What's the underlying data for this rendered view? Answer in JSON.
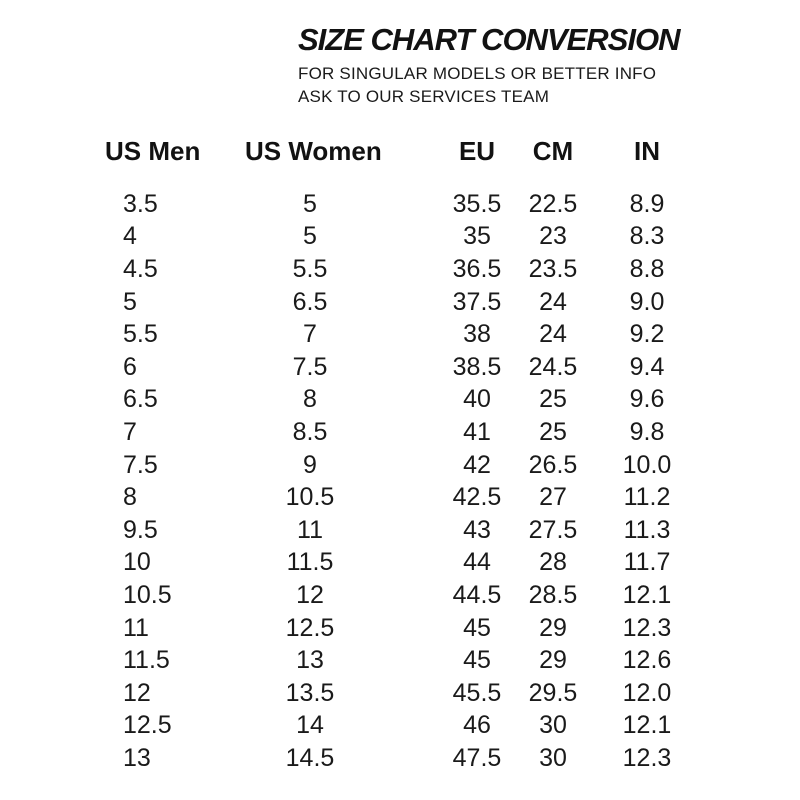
{
  "page": {
    "background_color": "#ffffff",
    "text_color": "#141414"
  },
  "header": {
    "title": "SIZE CHART CONVERSION",
    "subtitle_line1": "FOR SINGULAR MODELS OR BETTER INFO",
    "subtitle_line2": "ASK TO OUR SERVICES TEAM"
  },
  "chart_data": {
    "type": "table",
    "title": "SIZE CHART CONVERSION",
    "subtitle": "FOR SINGULAR MODELS OR BETTER INFO ASK TO OUR SERVICES TEAM",
    "columns": [
      "US Men",
      "US Women",
      "EU",
      "CM",
      "IN"
    ],
    "column_keys": [
      "us-men",
      "us-women",
      "eu",
      "cm",
      "in"
    ],
    "rows": [
      [
        "3.5",
        "5",
        "35.5",
        "22.5",
        "8.9"
      ],
      [
        "4",
        "5",
        "35",
        "23",
        "8.3"
      ],
      [
        "4.5",
        "5.5",
        "36.5",
        "23.5",
        "8.8"
      ],
      [
        "5",
        "6.5",
        "37.5",
        "24",
        "9.0"
      ],
      [
        "5.5",
        "7",
        "38",
        "24",
        "9.2"
      ],
      [
        "6",
        "7.5",
        "38.5",
        "24.5",
        "9.4"
      ],
      [
        "6.5",
        "8",
        "40",
        "25",
        "9.6"
      ],
      [
        "7",
        "8.5",
        "41",
        "25",
        "9.8"
      ],
      [
        "7.5",
        "9",
        "42",
        "26.5",
        "10.0"
      ],
      [
        "8",
        "10.5",
        "42.5",
        "27",
        "11.2"
      ],
      [
        "9.5",
        "11",
        "43",
        "27.5",
        "11.3"
      ],
      [
        "10",
        "11.5",
        "44",
        "28",
        "11.7"
      ],
      [
        "10.5",
        "12",
        "44.5",
        "28.5",
        "12.1"
      ],
      [
        "11",
        "12.5",
        "45",
        "29",
        "12.3"
      ],
      [
        "11.5",
        "13",
        "45",
        "29",
        "12.6"
      ],
      [
        "12",
        "13.5",
        "45.5",
        "29.5",
        "12.0"
      ],
      [
        "12.5",
        "14",
        "46",
        "30",
        "12.1"
      ],
      [
        "13",
        "14.5",
        "47.5",
        "30",
        "12.3"
      ]
    ]
  }
}
